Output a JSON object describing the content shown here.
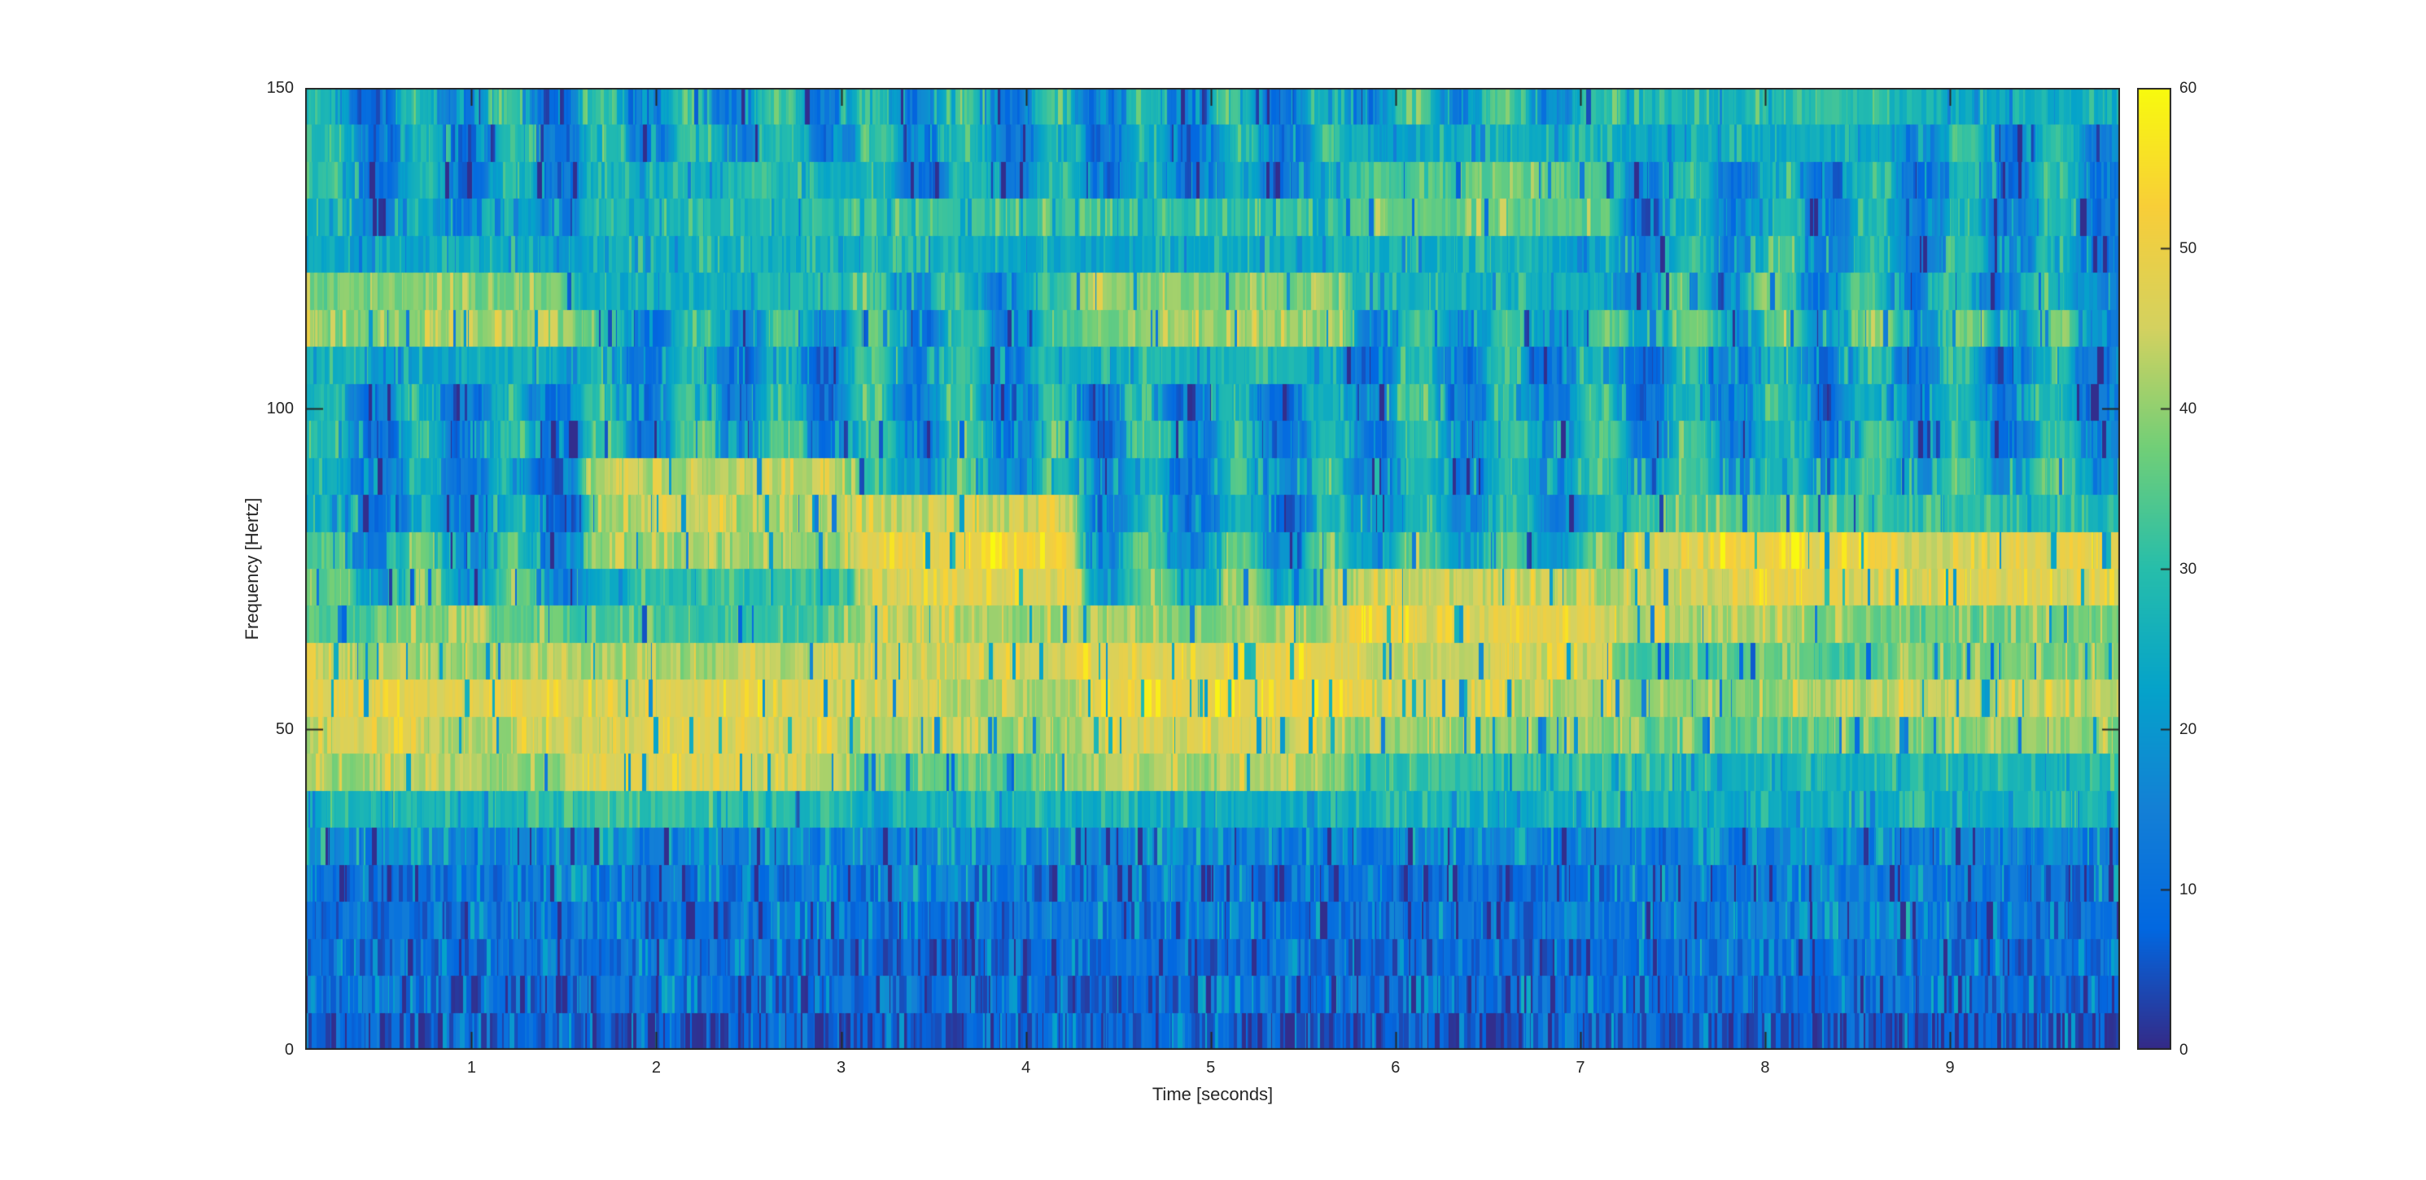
{
  "figure": {
    "background": "#ffffff",
    "axes_color": "#262626",
    "text_color": "#262626"
  },
  "axes": {
    "xlabel": "Time [seconds]",
    "ylabel": "Frequency [Hertz]",
    "x_tick_labels": [
      "1",
      "2",
      "3",
      "4",
      "5",
      "6",
      "7",
      "8",
      "9"
    ],
    "x_tick_values": [
      1,
      2,
      3,
      4,
      5,
      6,
      7,
      8,
      9
    ],
    "y_tick_labels": [
      "0",
      "50",
      "100",
      "150"
    ],
    "y_tick_values": [
      0,
      50,
      100,
      150
    ],
    "x_range": [
      0.1,
      9.92
    ],
    "y_range": [
      0,
      150
    ],
    "box": "on",
    "tick_direction": "in"
  },
  "colorbar": {
    "location": "right",
    "range": [
      0,
      60
    ],
    "tick_labels": [
      "0",
      "10",
      "20",
      "30",
      "40",
      "50",
      "60"
    ],
    "tick_values": [
      0,
      10,
      20,
      30,
      40,
      50,
      60
    ],
    "colormap": "parula",
    "stops": [
      "#352a87",
      "#0268e1",
      "#1480d6",
      "#05a3ca",
      "#27beab",
      "#71cf78",
      "#d4d260",
      "#f8ce39",
      "#f9fb0e"
    ]
  },
  "chart_data": {
    "type": "heatmap",
    "title": "",
    "xlabel": "Time [seconds]",
    "ylabel": "Frequency [Hertz]",
    "x_range": [
      0.1,
      9.92
    ],
    "y_range": [
      0,
      150
    ],
    "value_range": [
      0,
      60
    ],
    "time_bins": 40,
    "freq_bins": 26,
    "row_order": "bottom-to-top",
    "grid": false,
    "values": [
      [
        6,
        6,
        6,
        6,
        6,
        6,
        6,
        6,
        6,
        6,
        6,
        6,
        6,
        6,
        6,
        6,
        6,
        6,
        6,
        6,
        6,
        6,
        6,
        6,
        6,
        6,
        6,
        6,
        6,
        6,
        6,
        6,
        6,
        6,
        6,
        6,
        6,
        6,
        6,
        6
      ],
      [
        8,
        8,
        8,
        8,
        8,
        8,
        8,
        8,
        8,
        8,
        8,
        8,
        8,
        8,
        8,
        8,
        8,
        8,
        8,
        8,
        8,
        8,
        8,
        8,
        8,
        8,
        8,
        8,
        8,
        8,
        8,
        8,
        8,
        8,
        8,
        8,
        8,
        8,
        8,
        8
      ],
      [
        9,
        9,
        9,
        9,
        9,
        9,
        9,
        9,
        9,
        9,
        9,
        9,
        9,
        9,
        9,
        9,
        9,
        9,
        9,
        9,
        9,
        9,
        9,
        9,
        9,
        9,
        9,
        9,
        9,
        9,
        9,
        9,
        9,
        9,
        9,
        9,
        9,
        9,
        9,
        9
      ],
      [
        10,
        10,
        10,
        10,
        10,
        10,
        10,
        10,
        10,
        10,
        10,
        10,
        10,
        10,
        10,
        10,
        10,
        10,
        10,
        10,
        10,
        10,
        10,
        10,
        10,
        10,
        10,
        10,
        10,
        10,
        10,
        10,
        10,
        10,
        10,
        10,
        10,
        10,
        10,
        10
      ],
      [
        11,
        11,
        11,
        11,
        11,
        11,
        11,
        11,
        11,
        11,
        11,
        11,
        11,
        11,
        11,
        11,
        11,
        11,
        11,
        11,
        11,
        11,
        11,
        11,
        11,
        11,
        11,
        11,
        11,
        11,
        11,
        11,
        11,
        11,
        11,
        11,
        11,
        11,
        11,
        11
      ],
      [
        16,
        13,
        16,
        13,
        16,
        13,
        16,
        13,
        16,
        13,
        16,
        13,
        16,
        13,
        16,
        13,
        16,
        13,
        16,
        13,
        16,
        13,
        16,
        13,
        16,
        13,
        16,
        13,
        16,
        13,
        16,
        13,
        16,
        13,
        16,
        13,
        16,
        13,
        16,
        13
      ],
      [
        26,
        26,
        26,
        26,
        26,
        26,
        30,
        30,
        30,
        30,
        30,
        30,
        24,
        24,
        24,
        24,
        24,
        26,
        26,
        26,
        26,
        26,
        26,
        26,
        26,
        26,
        26,
        26,
        26,
        24,
        24,
        24,
        24,
        24,
        24,
        24,
        24,
        24,
        24,
        24
      ],
      [
        42,
        42,
        42,
        42,
        42,
        42,
        46,
        46,
        46,
        46,
        46,
        46,
        36,
        36,
        36,
        36,
        36,
        40,
        40,
        40,
        40,
        40,
        40,
        30,
        30,
        30,
        30,
        30,
        30,
        28,
        28,
        28,
        28,
        28,
        28,
        28,
        28,
        28,
        28,
        28
      ],
      [
        44,
        44,
        44,
        44,
        44,
        44,
        44,
        44,
        44,
        44,
        44,
        44,
        40,
        40,
        40,
        40,
        40,
        44,
        44,
        44,
        44,
        44,
        44,
        38,
        38,
        38,
        38,
        38,
        38,
        36,
        36,
        36,
        36,
        36,
        36,
        38,
        38,
        38,
        38,
        38
      ],
      [
        48,
        48,
        48,
        48,
        48,
        48,
        46,
        46,
        46,
        46,
        46,
        46,
        44,
        44,
        44,
        44,
        44,
        50,
        50,
        50,
        50,
        50,
        50,
        44,
        44,
        44,
        44,
        44,
        44,
        40,
        40,
        40,
        40,
        40,
        40,
        42,
        42,
        42,
        42,
        42
      ],
      [
        42,
        42,
        42,
        42,
        42,
        42,
        42,
        42,
        42,
        42,
        42,
        42,
        44,
        44,
        44,
        44,
        44,
        48,
        48,
        48,
        48,
        48,
        48,
        46,
        46,
        46,
        46,
        46,
        46,
        32,
        32,
        32,
        32,
        32,
        32,
        38,
        38,
        38,
        38,
        38
      ],
      [
        36,
        36,
        36,
        36,
        36,
        36,
        32,
        32,
        32,
        32,
        32,
        32,
        40,
        40,
        40,
        40,
        40,
        40,
        40,
        40,
        40,
        40,
        40,
        48,
        48,
        48,
        48,
        48,
        48,
        40,
        40,
        40,
        40,
        40,
        40,
        36,
        36,
        36,
        36,
        36
      ],
      [
        36,
        16,
        36,
        16,
        36,
        16,
        28,
        28,
        28,
        28,
        28,
        28,
        46,
        46,
        46,
        46,
        46,
        20,
        38,
        20,
        38,
        20,
        38,
        44,
        44,
        44,
        44,
        44,
        44,
        46,
        46,
        46,
        46,
        46,
        46,
        46,
        46,
        46,
        46,
        46
      ],
      [
        32,
        12,
        32,
        12,
        32,
        12,
        38,
        38,
        38,
        38,
        38,
        38,
        50,
        50,
        50,
        50,
        50,
        14,
        34,
        14,
        34,
        14,
        34,
        22,
        38,
        22,
        38,
        22,
        38,
        48,
        48,
        48,
        48,
        48,
        48,
        48,
        48,
        48,
        48,
        48
      ],
      [
        24,
        8,
        24,
        8,
        24,
        8,
        42,
        42,
        42,
        42,
        42,
        42,
        44,
        44,
        44,
        44,
        44,
        10,
        28,
        10,
        28,
        10,
        28,
        16,
        28,
        16,
        28,
        16,
        28,
        32,
        32,
        32,
        32,
        32,
        32,
        30,
        30,
        30,
        30,
        30
      ],
      [
        26,
        10,
        26,
        10,
        26,
        10,
        42,
        42,
        42,
        42,
        42,
        42,
        30,
        14,
        30,
        14,
        30,
        12,
        28,
        12,
        28,
        12,
        28,
        16,
        30,
        16,
        30,
        16,
        30,
        16,
        30,
        16,
        30,
        16,
        30,
        18,
        32,
        18,
        32,
        18
      ],
      [
        28,
        10,
        28,
        10,
        28,
        10,
        34,
        12,
        34,
        12,
        34,
        12,
        32,
        12,
        32,
        12,
        32,
        10,
        30,
        10,
        30,
        10,
        30,
        14,
        30,
        14,
        30,
        14,
        30,
        12,
        30,
        12,
        30,
        12,
        30,
        12,
        30,
        12,
        30,
        12
      ],
      [
        28,
        10,
        28,
        10,
        28,
        10,
        30,
        10,
        30,
        10,
        30,
        10,
        32,
        12,
        32,
        12,
        32,
        8,
        28,
        8,
        28,
        8,
        28,
        12,
        30,
        12,
        30,
        12,
        30,
        10,
        28,
        10,
        28,
        10,
        28,
        10,
        28,
        10,
        28,
        10
      ],
      [
        24,
        24,
        24,
        24,
        24,
        24,
        28,
        10,
        28,
        10,
        28,
        10,
        30,
        12,
        30,
        12,
        30,
        26,
        26,
        26,
        26,
        26,
        26,
        10,
        28,
        10,
        28,
        10,
        28,
        10,
        28,
        10,
        28,
        10,
        28,
        10,
        28,
        10,
        28,
        10
      ],
      [
        40,
        40,
        40,
        40,
        40,
        40,
        32,
        14,
        32,
        14,
        32,
        14,
        34,
        14,
        34,
        14,
        34,
        40,
        40,
        40,
        40,
        40,
        40,
        16,
        34,
        16,
        34,
        16,
        34,
        18,
        38,
        18,
        38,
        18,
        38,
        18,
        36,
        18,
        36,
        18
      ],
      [
        39,
        39,
        39,
        39,
        39,
        39,
        26,
        26,
        26,
        26,
        26,
        26,
        30,
        14,
        30,
        14,
        30,
        40,
        40,
        40,
        40,
        40,
        40,
        26,
        26,
        26,
        26,
        26,
        26,
        16,
        36,
        16,
        36,
        16,
        36,
        14,
        32,
        14,
        32,
        14
      ],
      [
        24,
        24,
        24,
        24,
        24,
        24,
        24,
        24,
        24,
        24,
        24,
        24,
        24,
        24,
        24,
        24,
        24,
        24,
        24,
        24,
        24,
        24,
        24,
        24,
        24,
        24,
        24,
        24,
        24,
        14,
        30,
        14,
        30,
        14,
        30,
        12,
        28,
        12,
        28,
        12
      ],
      [
        24,
        14,
        24,
        14,
        24,
        14,
        30,
        30,
        30,
        30,
        30,
        30,
        30,
        30,
        30,
        30,
        30,
        28,
        28,
        28,
        28,
        28,
        28,
        36,
        36,
        36,
        36,
        36,
        36,
        10,
        28,
        10,
        28,
        10,
        28,
        10,
        26,
        10,
        26,
        10
      ],
      [
        28,
        10,
        28,
        10,
        28,
        10,
        26,
        26,
        26,
        26,
        26,
        26,
        28,
        12,
        28,
        12,
        28,
        12,
        28,
        12,
        28,
        12,
        28,
        34,
        34,
        34,
        34,
        34,
        34,
        12,
        30,
        12,
        30,
        12,
        30,
        12,
        28,
        12,
        28,
        12
      ],
      [
        28,
        8,
        28,
        8,
        28,
        8,
        30,
        12,
        30,
        12,
        30,
        12,
        28,
        10,
        28,
        10,
        28,
        10,
        28,
        10,
        28,
        10,
        28,
        24,
        24,
        24,
        24,
        24,
        24,
        22,
        22,
        22,
        22,
        22,
        22,
        12,
        30,
        12,
        30,
        12
      ],
      [
        30,
        8,
        30,
        8,
        30,
        8,
        32,
        12,
        32,
        12,
        32,
        12,
        30,
        10,
        30,
        10,
        30,
        10,
        30,
        10,
        30,
        10,
        30,
        14,
        32,
        14,
        32,
        14,
        32,
        28,
        28,
        28,
        28,
        28,
        28,
        26,
        26,
        26,
        26,
        26
      ]
    ]
  }
}
